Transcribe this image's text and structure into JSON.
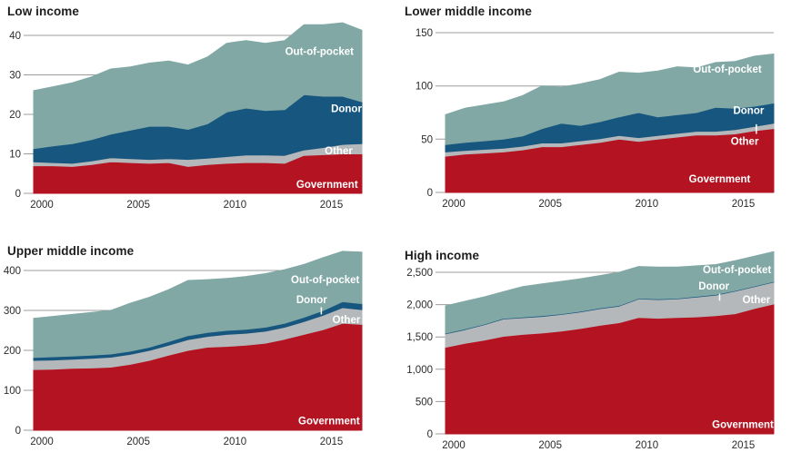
{
  "colors": {
    "government": "#b41322",
    "other": "#b5b8ba",
    "donor": "#17567e",
    "out_of_pocket": "#81a8a5",
    "grid": "#9c9c9c",
    "axis_text": "#2b2b2b",
    "series_label_text": "#ffffff"
  },
  "chart_data": [
    {
      "type": "area",
      "title": "Low income",
      "stacking": "bottom-to-top",
      "grid": true,
      "x": [
        2000,
        2001,
        2002,
        2003,
        2004,
        2005,
        2006,
        2007,
        2008,
        2009,
        2010,
        2011,
        2012,
        2013,
        2014,
        2015,
        2016,
        2017
      ],
      "series": [
        {
          "name": "Government",
          "key": "government",
          "values": [
            7,
            7,
            6.8,
            7.3,
            8,
            7.8,
            7.6,
            7.8,
            6.8,
            7.3,
            7.6,
            7.8,
            7.8,
            7.6,
            9.6,
            9.8,
            10,
            10
          ]
        },
        {
          "name": "Other",
          "key": "other",
          "values": [
            1,
            0.8,
            0.8,
            0.9,
            1,
            1,
            1,
            1,
            1.8,
            1.6,
            1.7,
            1.9,
            1.9,
            2,
            1.4,
            1.8,
            2.4,
            2.6
          ]
        },
        {
          "name": "Donor",
          "key": "donor",
          "values": [
            3.3,
            4.2,
            5,
            5.4,
            6,
            7.2,
            8.4,
            8.2,
            7.6,
            8.7,
            11.3,
            11.9,
            11.3,
            11.6,
            14,
            13,
            12.2,
            10.6
          ]
        },
        {
          "name": "Out-of-pocket",
          "key": "out_of_pocket",
          "values": [
            14.7,
            15,
            15.4,
            15.9,
            16.5,
            16,
            16,
            16.5,
            16.3,
            16.9,
            17.4,
            17.1,
            17,
            17.5,
            17.7,
            18.1,
            18.6,
            18.1
          ]
        }
      ],
      "ylim": [
        0,
        44
      ],
      "yticks": [
        0,
        10,
        20,
        30,
        40
      ],
      "ytick_labels": [
        "0",
        "10",
        "20",
        "30",
        "40"
      ],
      "xticks": [
        2000,
        2005,
        2010,
        2015
      ],
      "annotations": [
        {
          "text": "Out-of-pocket",
          "x": 2014.8,
          "y": 36
        },
        {
          "text": "Donor",
          "x": 2016.2,
          "y": 21.5
        },
        {
          "text": "Other",
          "x": 2015.8,
          "y": 10.8
        },
        {
          "text": "Government",
          "x": 2015.2,
          "y": 2.3
        }
      ]
    },
    {
      "type": "area",
      "title": "Lower middle income",
      "stacking": "bottom-to-top",
      "grid": true,
      "x": [
        2000,
        2001,
        2002,
        2003,
        2004,
        2005,
        2006,
        2007,
        2008,
        2009,
        2010,
        2011,
        2012,
        2013,
        2014,
        2015,
        2016,
        2017
      ],
      "series": [
        {
          "name": "Government",
          "key": "government",
          "values": [
            34,
            36,
            37,
            38,
            40,
            43,
            43,
            45,
            47,
            50,
            48,
            50,
            52,
            54,
            54,
            55,
            58,
            60
          ]
        },
        {
          "name": "Other",
          "key": "other",
          "values": [
            4,
            3.5,
            3.5,
            3.5,
            3.5,
            3.5,
            3.5,
            3.5,
            3.5,
            3.5,
            3.5,
            3.5,
            3.5,
            3.5,
            3.5,
            4,
            4,
            5
          ]
        },
        {
          "name": "Donor",
          "key": "donor",
          "values": [
            7,
            7.5,
            8,
            8.5,
            9.5,
            13.5,
            18.5,
            14.5,
            16,
            17.5,
            23.5,
            17.5,
            17.5,
            17.5,
            22.5,
            20,
            19,
            19
          ]
        },
        {
          "name": "Out-of-pocket",
          "key": "out_of_pocket",
          "values": [
            28,
            32,
            33.5,
            35,
            38,
            40,
            34,
            39,
            39.5,
            42,
            37,
            43,
            45,
            42,
            42,
            44,
            47,
            46
          ]
        }
      ],
      "ylim": [
        0,
        155
      ],
      "yticks": [
        0,
        50,
        100,
        150
      ],
      "ytick_labels": [
        "0",
        "50",
        "100",
        "150"
      ],
      "xticks": [
        2000,
        2005,
        2010,
        2015
      ],
      "annotations": [
        {
          "text": "Out-of-pocket",
          "x": 2014.6,
          "y": 116
        },
        {
          "text": "Donor",
          "x": 2015.7,
          "y": 77
        },
        {
          "text": "Other",
          "x": 2015.5,
          "y": 48,
          "pointer": {
            "x": 2016.1,
            "y1": 55,
            "y2": 64
          }
        },
        {
          "text": "Government",
          "x": 2014.2,
          "y": 13
        }
      ]
    },
    {
      "type": "area",
      "title": "Upper middle income",
      "stacking": "bottom-to-top",
      "grid": true,
      "x": [
        2000,
        2001,
        2002,
        2003,
        2004,
        2005,
        2006,
        2007,
        2008,
        2009,
        2010,
        2011,
        2012,
        2013,
        2014,
        2015,
        2016,
        2017
      ],
      "series": [
        {
          "name": "Government",
          "key": "government",
          "values": [
            152,
            153,
            155,
            156,
            158,
            165,
            175,
            188,
            200,
            208,
            210,
            213,
            218,
            228,
            240,
            252,
            268,
            265
          ]
        },
        {
          "name": "Other",
          "key": "other",
          "values": [
            23,
            23,
            23,
            24,
            25,
            25,
            25,
            25,
            27,
            27,
            30,
            30,
            30,
            30,
            32,
            36,
            39,
            37
          ]
        },
        {
          "name": "Donor",
          "key": "donor",
          "values": [
            7,
            8,
            8,
            8,
            8,
            8,
            8,
            9,
            10,
            10,
            10,
            10,
            10,
            10,
            11,
            12,
            15,
            15
          ]
        },
        {
          "name": "Out-of-pocket",
          "key": "out_of_pocket",
          "values": [
            98,
            101,
            104,
            107,
            109,
            120,
            125,
            130,
            138,
            132,
            130,
            132,
            134,
            134,
            132,
            132,
            126,
            129
          ]
        }
      ],
      "ylim": [
        0,
        450
      ],
      "yticks": [
        0,
        100,
        200,
        300,
        400
      ],
      "ytick_labels": [
        "0",
        "100",
        "200",
        "300",
        "400"
      ],
      "xticks": [
        2000,
        2005,
        2010,
        2015
      ],
      "annotations": [
        {
          "text": "Out-of-pocket",
          "x": 2015.1,
          "y": 377
        },
        {
          "text": "Donor",
          "x": 2014.4,
          "y": 327,
          "pointer": {
            "x": 2014.9,
            "y1": 290,
            "y2": 308
          }
        },
        {
          "text": "Other",
          "x": 2016.2,
          "y": 277
        },
        {
          "text": "Government",
          "x": 2015.3,
          "y": 24
        }
      ]
    },
    {
      "type": "area",
      "title": "High income",
      "stacking": "bottom-to-top",
      "grid": true,
      "x": [
        2000,
        2001,
        2002,
        2003,
        2004,
        2005,
        2006,
        2007,
        2008,
        2009,
        2010,
        2011,
        2012,
        2013,
        2014,
        2015,
        2016,
        2017
      ],
      "series": [
        {
          "name": "Government",
          "key": "government",
          "values": [
            1340,
            1400,
            1450,
            1510,
            1540,
            1560,
            1590,
            1630,
            1680,
            1720,
            1800,
            1790,
            1800,
            1810,
            1830,
            1860,
            1940,
            2010
          ]
        },
        {
          "name": "Other",
          "key": "other",
          "values": [
            208,
            213,
            238,
            268,
            258,
            258,
            258,
            258,
            258,
            258,
            288,
            288,
            288,
            308,
            318,
            348,
            338,
            338
          ]
        },
        {
          "name": "Donor",
          "key": "donor",
          "values": [
            10,
            10,
            10,
            10,
            10,
            10,
            10,
            10,
            10,
            10,
            10,
            10,
            10,
            10,
            10,
            10,
            10,
            10
          ]
        },
        {
          "name": "Out-of-pocket",
          "key": "out_of_pocket",
          "values": [
            422,
            427,
            422,
            412,
            472,
            492,
            502,
            502,
            502,
            512,
            492,
            492,
            482,
            472,
            462,
            462,
            462,
            462
          ]
        }
      ],
      "ylim": [
        0,
        2860
      ],
      "yticks": [
        0,
        500,
        1000,
        1500,
        2000,
        2500
      ],
      "ytick_labels": [
        "0",
        "500",
        "1,000",
        "1,500",
        "2,000",
        "2,500"
      ],
      "xticks": [
        2000,
        2005,
        2010,
        2015
      ],
      "annotations": [
        {
          "text": "Out-of-pocket",
          "x": 2015.1,
          "y": 2540
        },
        {
          "text": "Donor",
          "x": 2013.9,
          "y": 2290,
          "pointer": {
            "x": 2014.2,
            "y1": 2060,
            "y2": 2170
          }
        },
        {
          "text": "Other",
          "x": 2016.1,
          "y": 2080
        },
        {
          "text": "Government",
          "x": 2015.4,
          "y": 150
        }
      ]
    }
  ]
}
